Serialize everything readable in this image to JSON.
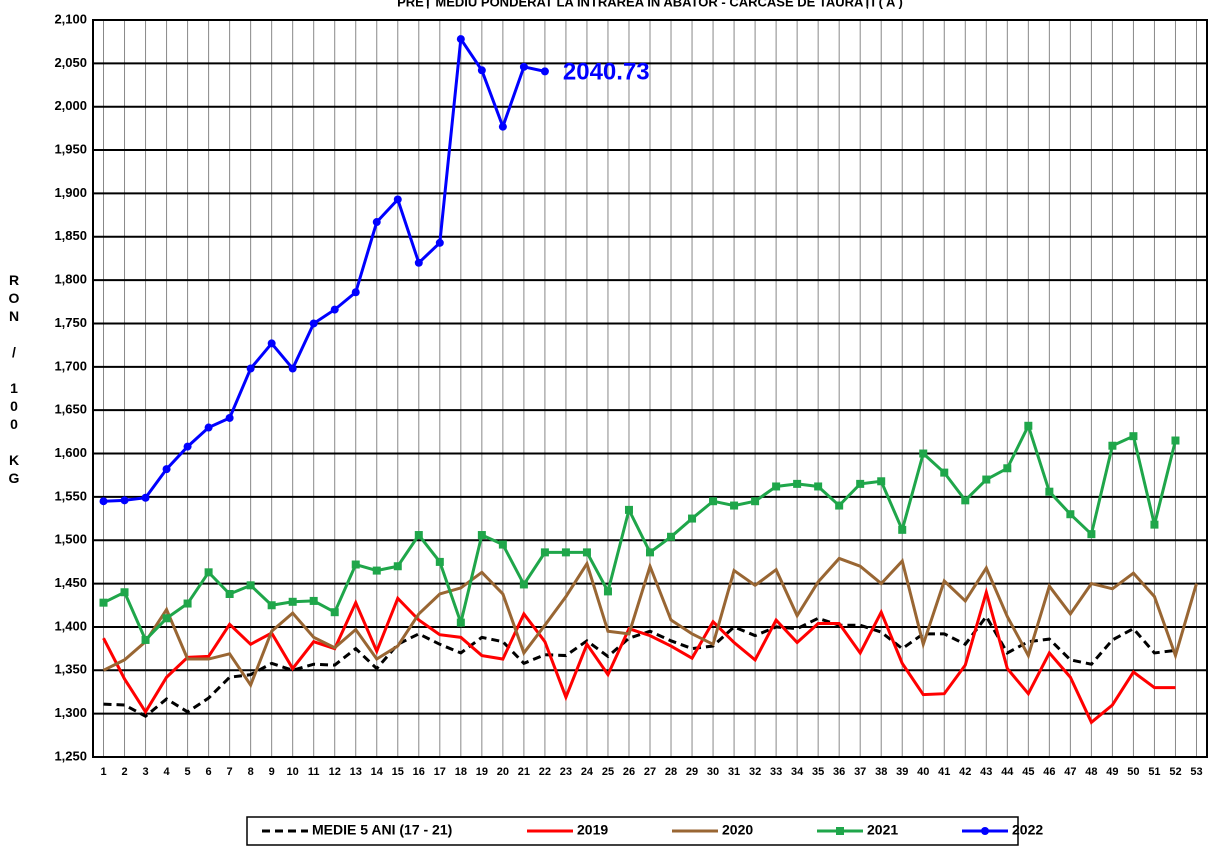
{
  "chart_data": {
    "type": "line",
    "title": "PREȚ MEDIU PONDERAT LA INTRAREA ÎN ABATOR - CARCASE DE TAURAȚI ( A )",
    "y_label": "RON / 100 KG",
    "categories": [
      1,
      2,
      3,
      4,
      5,
      6,
      7,
      8,
      9,
      10,
      11,
      12,
      13,
      14,
      15,
      16,
      17,
      18,
      19,
      20,
      21,
      22,
      23,
      24,
      25,
      26,
      27,
      28,
      29,
      30,
      31,
      32,
      33,
      34,
      35,
      36,
      37,
      38,
      39,
      40,
      41,
      42,
      43,
      44,
      45,
      46,
      47,
      48,
      49,
      50,
      51,
      52,
      53
    ],
    "ylim": [
      1250,
      2100
    ],
    "yticks": [
      {
        "value": 1250,
        "label": "1,250"
      },
      {
        "value": 1300,
        "label": "1,300"
      },
      {
        "value": 1350,
        "label": "1,350"
      },
      {
        "value": 1400,
        "label": "1,400"
      },
      {
        "value": 1450,
        "label": "1,450"
      },
      {
        "value": 1500,
        "label": "1,500"
      },
      {
        "value": 1550,
        "label": "1,550"
      },
      {
        "value": 1600,
        "label": "1,600"
      },
      {
        "value": 1650,
        "label": "1,650"
      },
      {
        "value": 1700,
        "label": "1,700"
      },
      {
        "value": 1750,
        "label": "1,750"
      },
      {
        "value": 1800,
        "label": "1,800"
      },
      {
        "value": 1850,
        "label": "1,850"
      },
      {
        "value": 1900,
        "label": "1,900"
      },
      {
        "value": 1950,
        "label": "1,950"
      },
      {
        "value": 2000,
        "label": "2,000"
      },
      {
        "value": 2050,
        "label": "2,050"
      },
      {
        "value": 2100,
        "label": "2,100"
      }
    ],
    "grid": true,
    "legend": "bottom",
    "series": [
      {
        "name": "MEDIE 5 ANI (17 - 21)",
        "color": "#000000",
        "dash": true,
        "marker": null,
        "values": [
          1311,
          1310,
          1297,
          1317,
          1302,
          1318,
          1342,
          1345,
          1358,
          1350,
          1357,
          1356,
          1375,
          1352,
          1380,
          1392,
          1380,
          1370,
          1388,
          1383,
          1358,
          1368,
          1367,
          1384,
          1366,
          1387,
          1395,
          1384,
          1375,
          1378,
          1400,
          1390,
          1400,
          1398,
          1410,
          1402,
          1402,
          1394,
          1375,
          1392,
          1392,
          1380,
          1412,
          1370,
          1383,
          1386,
          1362,
          1357,
          1385,
          1398,
          1370,
          1373,
          null
        ]
      },
      {
        "name": "2019",
        "color": "#ff0000",
        "dash": false,
        "marker": null,
        "values": [
          1387,
          1340,
          1302,
          1342,
          1365,
          1366,
          1403,
          1380,
          1393,
          1352,
          1383,
          1375,
          1428,
          1372,
          1433,
          1408,
          1391,
          1388,
          1367,
          1363,
          1415,
          1383,
          1319,
          1380,
          1345,
          1398,
          1390,
          1378,
          1364,
          1406,
          1382,
          1362,
          1408,
          1382,
          1404,
          1404,
          1370,
          1417,
          1358,
          1322,
          1323,
          1356,
          1440,
          1352,
          1323,
          1370,
          1342,
          1290,
          1310,
          1348,
          1330,
          1330,
          null
        ]
      },
      {
        "name": "2020",
        "color": "#996633",
        "dash": false,
        "marker": null,
        "values": [
          1350,
          1362,
          1383,
          1420,
          1363,
          1363,
          1369,
          1333,
          1395,
          1416,
          1388,
          1376,
          1397,
          1363,
          1378,
          1415,
          1438,
          1445,
          1463,
          1438,
          1370,
          1402,
          1435,
          1473,
          1395,
          1392,
          1470,
          1408,
          1392,
          1380,
          1465,
          1448,
          1466,
          1413,
          1452,
          1479,
          1470,
          1450,
          1476,
          1380,
          1453,
          1430,
          1468,
          1412,
          1367,
          1447,
          1415,
          1450,
          1444,
          1462,
          1435,
          1367,
          1450
        ]
      },
      {
        "name": "2021",
        "color": "#1fa64a",
        "dash": false,
        "marker": "square",
        "values": [
          1428,
          1440,
          1385,
          1410,
          1427,
          1463,
          1438,
          1448,
          1425,
          1429,
          1430,
          1417,
          1472,
          1465,
          1470,
          1506,
          1475,
          1405,
          1506,
          1495,
          1449,
          1486,
          1486,
          1486,
          1441,
          1535,
          1486,
          1504,
          1525,
          1545,
          1540,
          1545,
          1562,
          1565,
          1562,
          1540,
          1565,
          1568,
          1512,
          1600,
          1578,
          1546,
          1570,
          1583,
          1632,
          1556,
          1530,
          1507,
          1609,
          1620,
          1518,
          1615,
          null
        ]
      },
      {
        "name": "2022",
        "color": "#0000ff",
        "dash": false,
        "marker": "circle",
        "label_last": true,
        "values": [
          1545,
          1546,
          1549,
          1582,
          1608,
          1630,
          1641,
          1698,
          1727,
          1698,
          1750,
          1766,
          1786,
          1867,
          1893,
          1820,
          1843,
          2078,
          2042,
          1977,
          2046,
          2040.73,
          null,
          null,
          null,
          null,
          null,
          null,
          null,
          null,
          null,
          null,
          null,
          null,
          null,
          null,
          null,
          null,
          null,
          null,
          null,
          null,
          null,
          null,
          null,
          null,
          null,
          null,
          null,
          null,
          null,
          null,
          null
        ]
      }
    ]
  }
}
